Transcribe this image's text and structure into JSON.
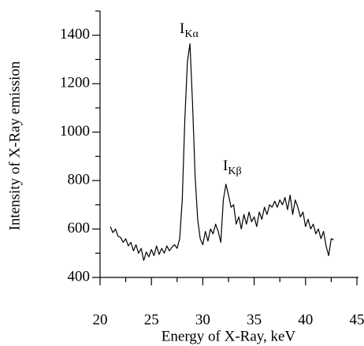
{
  "chart_data": {
    "type": "line",
    "xlabel": "Energy of X-Ray, keV",
    "ylabel": "Intensity of X-Ray emission",
    "xlim": [
      20,
      45
    ],
    "ylim": [
      400,
      1500
    ],
    "xticks": [
      20,
      25,
      30,
      35,
      40,
      45
    ],
    "yticks": [
      400,
      600,
      800,
      1000,
      1200,
      1400
    ],
    "xminorticks": [
      22.5,
      27.5,
      32.5,
      37.5,
      42.5
    ],
    "yminorticks": [
      500,
      700,
      900,
      1100,
      1300,
      1500
    ],
    "annotations": [
      {
        "text": "I",
        "sub": "Kα"
      },
      {
        "text": "I",
        "sub": "Kβ"
      }
    ],
    "series": [
      {
        "color": "#000000",
        "x": [
          21,
          21.25,
          21.5,
          21.75,
          22,
          22.25,
          22.5,
          22.75,
          23,
          23.25,
          23.5,
          23.75,
          24,
          24.25,
          24.5,
          24.75,
          25,
          25.25,
          25.5,
          25.75,
          26,
          26.25,
          26.5,
          26.75,
          27,
          27.25,
          27.5,
          27.75,
          28,
          28.25,
          28.5,
          28.75,
          29,
          29.25,
          29.5,
          29.75,
          30,
          30.25,
          30.5,
          30.75,
          31,
          31.25,
          31.5,
          31.75,
          32,
          32.25,
          32.5,
          32.75,
          33,
          33.25,
          33.5,
          33.75,
          34,
          34.25,
          34.5,
          34.75,
          35,
          35.25,
          35.5,
          35.75,
          36,
          36.25,
          36.5,
          36.75,
          37,
          37.25,
          37.5,
          37.75,
          38,
          38.25,
          38.5,
          38.75,
          39,
          39.25,
          39.5,
          39.75,
          40,
          40.25,
          40.5,
          40.75,
          41,
          41.25,
          41.5,
          41.75,
          42,
          42.25,
          42.5,
          42.75
        ],
        "values": [
          610,
          585,
          600,
          570,
          565,
          545,
          560,
          530,
          545,
          510,
          535,
          500,
          520,
          470,
          505,
          485,
          515,
          490,
          530,
          495,
          520,
          500,
          530,
          510,
          525,
          535,
          520,
          560,
          720,
          1050,
          1290,
          1365,
          1120,
          820,
          640,
          560,
          535,
          590,
          550,
          600,
          580,
          620,
          590,
          545,
          720,
          785,
          740,
          690,
          700,
          620,
          650,
          600,
          660,
          620,
          670,
          630,
          650,
          610,
          670,
          640,
          690,
          660,
          700,
          690,
          715,
          690,
          720,
          700,
          730,
          680,
          740,
          660,
          720,
          690,
          650,
          670,
          610,
          640,
          600,
          620,
          580,
          600,
          560,
          590,
          530,
          490,
          560,
          555
        ]
      }
    ]
  }
}
